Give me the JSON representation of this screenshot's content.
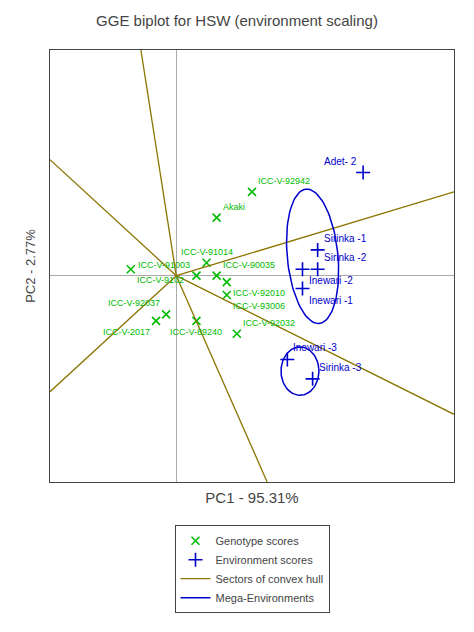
{
  "chart_data": {
    "type": "scatter",
    "title": "GGE biplot for HSW (environment scaling)",
    "x_label": "PC1 - 95.31%",
    "y_label": "PC2 - 2.77%",
    "xlim": [
      -0.25,
      0.55
    ],
    "ylim": [
      -0.32,
      0.35
    ],
    "grid": false,
    "tick_labels": false,
    "series": [
      {
        "name": "Genotype scores",
        "type": "scatter",
        "marker": "x",
        "color": "#00bb00",
        "labels": [
          "Akaki",
          "ICC-V-92942",
          "ICC-V-91014",
          "ICC-V-90035",
          "ICC-V-9102",
          "ICC-V-91003",
          "ICC-V-92010",
          "ICC-V-93006",
          "ICC-V-92032",
          "ICC-V-89240",
          "ICC-V-92037",
          "ICC-V-2017"
        ],
        "x": [
          0.08,
          0.15,
          0.06,
          0.08,
          -0.09,
          0.04,
          0.1,
          0.1,
          0.12,
          0.04,
          -0.02,
          -0.04
        ],
        "y": [
          0.09,
          0.13,
          0.02,
          0.0,
          0.01,
          0.0,
          -0.01,
          -0.03,
          -0.09,
          -0.07,
          -0.06,
          -0.07
        ]
      },
      {
        "name": "Environment scores",
        "type": "scatter",
        "marker": "plus",
        "color": "#0000cc",
        "labels": [
          "Adet- 2",
          "Sirinka -1",
          "Inewari -2",
          "Sirinka -2",
          "Inewari -1",
          "Inewari -3",
          "Sirinka -3"
        ],
        "x": [
          0.37,
          0.28,
          0.25,
          0.28,
          0.25,
          0.22,
          0.27
        ],
        "y": [
          0.16,
          0.04,
          0.01,
          0.01,
          -0.02,
          -0.13,
          -0.16
        ]
      },
      {
        "name": "Sectors of convex hull",
        "type": "segments",
        "line_style": "solid",
        "color": "#8B7500",
        "segments": [
          [
            [
              0.0,
              0.0
            ],
            [
              0.55,
              -0.215
            ]
          ],
          [
            [
              0.0,
              0.0
            ],
            [
              -0.07,
              0.35
            ]
          ],
          [
            [
              0.0,
              0.0
            ],
            [
              -0.25,
              0.18
            ]
          ],
          [
            [
              0.0,
              0.0
            ],
            [
              -0.25,
              -0.18
            ]
          ],
          [
            [
              0.0,
              0.0
            ],
            [
              0.18,
              -0.32
            ]
          ],
          [
            [
              0.0,
              0.0
            ],
            [
              0.55,
              0.13
            ]
          ]
        ]
      },
      {
        "name": "Mega-Environments",
        "type": "ellipses",
        "line_style": "solid",
        "color": "#0000cc",
        "ellipses": [
          {
            "center": [
              0.27,
              0.03
            ],
            "width": 0.1,
            "height": 0.21,
            "angle": 8
          },
          {
            "center": [
              0.245,
              -0.148
            ],
            "width": 0.075,
            "height": 0.075,
            "angle": 5
          }
        ]
      }
    ]
  }
}
